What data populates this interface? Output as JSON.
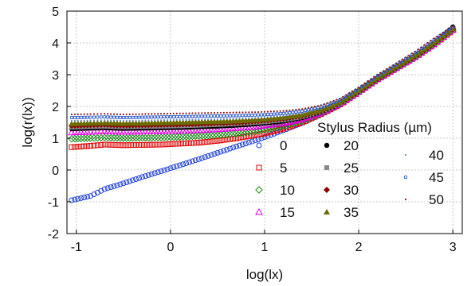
{
  "chart_data": {
    "type": "scatter",
    "title": "",
    "xlabel": "log(lx)",
    "ylabel": "log(r(lx))",
    "xlim": [
      -1.1,
      3.1
    ],
    "ylim": [
      -2,
      5
    ],
    "x_ticks": [
      -1,
      0,
      1,
      2,
      3
    ],
    "y_ticks": [
      -2,
      -1,
      0,
      1,
      2,
      3,
      4,
      5
    ],
    "x_tick_labels": [
      "-1",
      "0",
      "1",
      "2",
      "3"
    ],
    "y_tick_labels": [
      "-2",
      "-1",
      "0",
      "1",
      "2",
      "3",
      "4",
      "5"
    ],
    "grid": true,
    "legend": {
      "title": "Stylus Radius (µm)",
      "placement": "right",
      "entries": [
        "0",
        "5",
        "10",
        "15",
        "20",
        "25",
        "30",
        "35",
        "40",
        "45",
        "50"
      ]
    },
    "series": [
      {
        "name": "0",
        "color": "#1f3fd8",
        "marker": "circle-open",
        "points": [
          [
            -1.05,
            -0.95
          ],
          [
            -0.85,
            -0.82
          ],
          [
            -0.7,
            -0.6
          ],
          [
            -0.5,
            -0.42
          ],
          [
            -0.3,
            -0.22
          ],
          [
            -0.1,
            -0.04
          ],
          [
            0.1,
            0.15
          ],
          [
            0.3,
            0.34
          ],
          [
            0.5,
            0.54
          ],
          [
            0.7,
            0.74
          ],
          [
            0.9,
            0.93
          ],
          [
            1.0,
            1.03
          ],
          [
            1.2,
            1.25
          ],
          [
            1.4,
            1.48
          ],
          [
            1.6,
            1.75
          ],
          [
            1.8,
            2.05
          ],
          [
            2.0,
            2.45
          ],
          [
            2.2,
            2.85
          ],
          [
            2.4,
            3.2
          ],
          [
            2.6,
            3.55
          ],
          [
            2.8,
            3.95
          ],
          [
            3.0,
            4.4
          ]
        ]
      },
      {
        "name": "5",
        "color": "#e00000",
        "marker": "square-open",
        "points": [
          [
            -1.05,
            0.72
          ],
          [
            -0.85,
            0.76
          ],
          [
            -0.7,
            0.8
          ],
          [
            -0.5,
            0.78
          ],
          [
            -0.3,
            0.79
          ],
          [
            -0.1,
            0.8
          ],
          [
            0.1,
            0.83
          ],
          [
            0.3,
            0.86
          ],
          [
            0.5,
            0.92
          ],
          [
            0.7,
            1.0
          ],
          [
            0.9,
            1.1
          ],
          [
            1.0,
            1.15
          ],
          [
            1.2,
            1.3
          ],
          [
            1.4,
            1.5
          ],
          [
            1.6,
            1.76
          ],
          [
            1.8,
            2.06
          ],
          [
            2.0,
            2.45
          ],
          [
            2.2,
            2.85
          ],
          [
            2.4,
            3.2
          ],
          [
            2.6,
            3.55
          ],
          [
            2.8,
            3.95
          ],
          [
            3.0,
            4.4
          ]
        ]
      },
      {
        "name": "10",
        "color": "#1a8a1a",
        "marker": "diamond-open",
        "points": [
          [
            -1.05,
            0.98
          ],
          [
            -0.85,
            1.0
          ],
          [
            -0.7,
            1.02
          ],
          [
            -0.5,
            1.0
          ],
          [
            -0.3,
            1.01
          ],
          [
            -0.1,
            1.02
          ],
          [
            0.1,
            1.04
          ],
          [
            0.3,
            1.07
          ],
          [
            0.5,
            1.1
          ],
          [
            0.7,
            1.15
          ],
          [
            0.9,
            1.22
          ],
          [
            1.0,
            1.27
          ],
          [
            1.2,
            1.38
          ],
          [
            1.4,
            1.55
          ],
          [
            1.6,
            1.78
          ],
          [
            1.8,
            2.07
          ],
          [
            2.0,
            2.46
          ],
          [
            2.2,
            2.86
          ],
          [
            2.4,
            3.21
          ],
          [
            2.6,
            3.56
          ],
          [
            2.8,
            3.96
          ],
          [
            3.0,
            4.41
          ]
        ]
      },
      {
        "name": "15",
        "color": "#e000e0",
        "marker": "triangle-open",
        "points": [
          [
            -1.05,
            1.18
          ],
          [
            -0.85,
            1.2
          ],
          [
            -0.7,
            1.22
          ],
          [
            -0.5,
            1.2
          ],
          [
            -0.3,
            1.21
          ],
          [
            -0.1,
            1.22
          ],
          [
            0.1,
            1.23
          ],
          [
            0.3,
            1.25
          ],
          [
            0.5,
            1.28
          ],
          [
            0.7,
            1.32
          ],
          [
            0.9,
            1.36
          ],
          [
            1.0,
            1.4
          ],
          [
            1.2,
            1.47
          ],
          [
            1.4,
            1.6
          ],
          [
            1.6,
            1.8
          ],
          [
            1.8,
            2.08
          ],
          [
            2.0,
            2.46
          ],
          [
            2.2,
            2.86
          ],
          [
            2.4,
            3.21
          ],
          [
            2.6,
            3.56
          ],
          [
            2.8,
            3.96
          ],
          [
            3.0,
            4.42
          ]
        ]
      },
      {
        "name": "20",
        "color": "#000000",
        "marker": "circle",
        "points": [
          [
            -1.05,
            1.3
          ],
          [
            -0.85,
            1.32
          ],
          [
            -0.7,
            1.33
          ],
          [
            -0.5,
            1.31
          ],
          [
            -0.3,
            1.32
          ],
          [
            -0.1,
            1.33
          ],
          [
            0.1,
            1.34
          ],
          [
            0.3,
            1.36
          ],
          [
            0.5,
            1.38
          ],
          [
            0.7,
            1.41
          ],
          [
            0.9,
            1.45
          ],
          [
            1.0,
            1.48
          ],
          [
            1.2,
            1.54
          ],
          [
            1.4,
            1.65
          ],
          [
            1.6,
            1.83
          ],
          [
            1.8,
            2.1
          ],
          [
            2.0,
            2.47
          ],
          [
            2.2,
            2.87
          ],
          [
            2.4,
            3.22
          ],
          [
            2.6,
            3.57
          ],
          [
            2.8,
            3.97
          ],
          [
            3.0,
            4.5
          ]
        ]
      },
      {
        "name": "25",
        "color": "#888888",
        "marker": "square",
        "points": [
          [
            -1.05,
            1.35
          ],
          [
            -0.85,
            1.37
          ],
          [
            -0.7,
            1.38
          ],
          [
            -0.5,
            1.36
          ],
          [
            -0.3,
            1.37
          ],
          [
            -0.1,
            1.38
          ],
          [
            0.1,
            1.39
          ],
          [
            0.3,
            1.41
          ],
          [
            0.5,
            1.43
          ],
          [
            0.7,
            1.46
          ],
          [
            0.9,
            1.5
          ],
          [
            1.0,
            1.52
          ],
          [
            1.2,
            1.58
          ],
          [
            1.4,
            1.68
          ],
          [
            1.6,
            1.85
          ],
          [
            1.8,
            2.11
          ],
          [
            2.0,
            2.48
          ],
          [
            2.2,
            2.88
          ],
          [
            2.4,
            3.23
          ],
          [
            2.6,
            3.58
          ],
          [
            2.8,
            3.98
          ],
          [
            3.0,
            4.43
          ]
        ]
      },
      {
        "name": "30",
        "color": "#8b0000",
        "marker": "diamond",
        "points": [
          [
            -1.05,
            1.4
          ],
          [
            -0.85,
            1.42
          ],
          [
            -0.7,
            1.43
          ],
          [
            -0.5,
            1.41
          ],
          [
            -0.3,
            1.42
          ],
          [
            -0.1,
            1.43
          ],
          [
            0.1,
            1.44
          ],
          [
            0.3,
            1.46
          ],
          [
            0.5,
            1.48
          ],
          [
            0.7,
            1.5
          ],
          [
            0.9,
            1.54
          ],
          [
            1.0,
            1.56
          ],
          [
            1.2,
            1.62
          ],
          [
            1.4,
            1.71
          ],
          [
            1.6,
            1.87
          ],
          [
            1.8,
            2.12
          ],
          [
            2.0,
            2.49
          ],
          [
            2.2,
            2.89
          ],
          [
            2.4,
            3.24
          ],
          [
            2.6,
            3.59
          ],
          [
            2.8,
            3.99
          ],
          [
            3.0,
            4.44
          ]
        ]
      },
      {
        "name": "35",
        "color": "#6b6b00",
        "marker": "triangle",
        "points": [
          [
            -1.05,
            1.45
          ],
          [
            -0.85,
            1.47
          ],
          [
            -0.7,
            1.48
          ],
          [
            -0.5,
            1.46
          ],
          [
            -0.3,
            1.47
          ],
          [
            -0.1,
            1.48
          ],
          [
            0.1,
            1.49
          ],
          [
            0.3,
            1.51
          ],
          [
            0.5,
            1.52
          ],
          [
            0.7,
            1.54
          ],
          [
            0.9,
            1.57
          ],
          [
            1.0,
            1.59
          ],
          [
            1.2,
            1.65
          ],
          [
            1.4,
            1.74
          ],
          [
            1.6,
            1.89
          ],
          [
            1.8,
            2.13
          ],
          [
            2.0,
            2.5
          ],
          [
            2.2,
            2.9
          ],
          [
            2.4,
            3.25
          ],
          [
            2.6,
            3.6
          ],
          [
            2.8,
            4.0
          ],
          [
            3.0,
            4.45
          ]
        ]
      },
      {
        "name": "40",
        "color": "#6f8fbf",
        "marker": "dot",
        "points": [
          [
            -1.05,
            1.55
          ],
          [
            -0.85,
            1.56
          ],
          [
            -0.7,
            1.57
          ],
          [
            -0.5,
            1.55
          ],
          [
            -0.3,
            1.56
          ],
          [
            -0.1,
            1.57
          ],
          [
            0.1,
            1.58
          ],
          [
            0.3,
            1.59
          ],
          [
            0.5,
            1.6
          ],
          [
            0.7,
            1.62
          ],
          [
            0.9,
            1.64
          ],
          [
            1.0,
            1.66
          ],
          [
            1.2,
            1.71
          ],
          [
            1.4,
            1.79
          ],
          [
            1.6,
            1.93
          ],
          [
            1.8,
            2.16
          ],
          [
            2.0,
            2.52
          ],
          [
            2.2,
            2.93
          ],
          [
            2.4,
            3.28
          ],
          [
            2.6,
            3.64
          ],
          [
            2.8,
            4.05
          ],
          [
            3.0,
            4.48
          ]
        ]
      },
      {
        "name": "45",
        "color": "#2050c8",
        "marker": "square-small",
        "points": [
          [
            -1.05,
            1.65
          ],
          [
            -0.85,
            1.66
          ],
          [
            -0.7,
            1.67
          ],
          [
            -0.5,
            1.65
          ],
          [
            -0.3,
            1.66
          ],
          [
            -0.1,
            1.67
          ],
          [
            0.1,
            1.68
          ],
          [
            0.3,
            1.69
          ],
          [
            0.5,
            1.7
          ],
          [
            0.7,
            1.71
          ],
          [
            0.9,
            1.73
          ],
          [
            1.0,
            1.74
          ],
          [
            1.2,
            1.78
          ],
          [
            1.4,
            1.85
          ],
          [
            1.6,
            1.98
          ],
          [
            1.8,
            2.2
          ],
          [
            2.0,
            2.56
          ],
          [
            2.2,
            2.97
          ],
          [
            2.4,
            3.32
          ],
          [
            2.6,
            3.69
          ],
          [
            2.8,
            4.1
          ],
          [
            3.0,
            4.5
          ]
        ]
      },
      {
        "name": "50",
        "color": "#8b1a1a",
        "marker": "dot",
        "points": [
          [
            -1.05,
            1.75
          ],
          [
            -0.85,
            1.76
          ],
          [
            -0.7,
            1.77
          ],
          [
            -0.5,
            1.75
          ],
          [
            -0.3,
            1.76
          ],
          [
            -0.1,
            1.77
          ],
          [
            0.1,
            1.78
          ],
          [
            0.3,
            1.79
          ],
          [
            0.5,
            1.8
          ],
          [
            0.7,
            1.81
          ],
          [
            0.9,
            1.82
          ],
          [
            1.0,
            1.83
          ],
          [
            1.2,
            1.86
          ],
          [
            1.4,
            1.92
          ],
          [
            1.6,
            2.04
          ],
          [
            1.8,
            2.25
          ],
          [
            2.0,
            2.6
          ],
          [
            2.2,
            3.0
          ],
          [
            2.4,
            3.36
          ],
          [
            2.6,
            3.73
          ],
          [
            2.8,
            4.14
          ],
          [
            3.0,
            4.52
          ]
        ]
      }
    ]
  }
}
